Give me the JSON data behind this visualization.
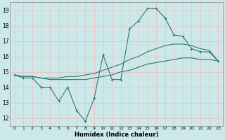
{
  "title": "",
  "xlabel": "Humidex (Indice chaleur)",
  "ylabel": "",
  "xlim": [
    -0.5,
    23.5
  ],
  "ylim": [
    11.5,
    19.5
  ],
  "yticks": [
    12,
    13,
    14,
    15,
    16,
    17,
    18,
    19
  ],
  "xticks": [
    0,
    1,
    2,
    3,
    4,
    5,
    6,
    7,
    8,
    9,
    10,
    11,
    12,
    13,
    14,
    15,
    16,
    17,
    18,
    19,
    20,
    21,
    22,
    23
  ],
  "bg_color": "#cde8e8",
  "grid_color": "#e8c8c8",
  "line_color": "#2d7a6e",
  "series1_x": [
    0,
    1,
    2,
    3,
    4,
    5,
    6,
    7,
    8,
    9,
    10,
    11,
    12,
    13,
    14,
    15,
    16,
    17,
    18,
    19,
    20,
    21,
    22,
    23
  ],
  "series1_y": [
    14.8,
    14.6,
    14.6,
    14.0,
    14.0,
    13.1,
    14.0,
    12.5,
    11.8,
    13.3,
    16.1,
    14.5,
    14.5,
    17.8,
    18.3,
    19.1,
    19.1,
    18.5,
    17.4,
    17.3,
    16.5,
    16.3,
    16.3,
    15.7
  ],
  "series2_x": [
    0,
    1,
    2,
    3,
    4,
    5,
    6,
    7,
    8,
    9,
    10,
    11,
    12,
    13,
    14,
    15,
    16,
    17,
    18,
    19,
    20,
    21,
    22,
    23
  ],
  "series2_y": [
    14.8,
    14.7,
    14.7,
    14.6,
    14.6,
    14.6,
    14.7,
    14.7,
    14.8,
    14.9,
    15.1,
    15.3,
    15.5,
    15.8,
    16.0,
    16.3,
    16.5,
    16.7,
    16.8,
    16.8,
    16.7,
    16.5,
    16.4,
    15.7
  ],
  "series3_x": [
    0,
    1,
    2,
    3,
    4,
    5,
    6,
    7,
    8,
    9,
    10,
    11,
    12,
    13,
    14,
    15,
    16,
    17,
    18,
    19,
    20,
    21,
    22,
    23
  ],
  "series3_y": [
    14.8,
    14.7,
    14.7,
    14.6,
    14.5,
    14.5,
    14.5,
    14.5,
    14.5,
    14.6,
    14.7,
    14.8,
    15.0,
    15.1,
    15.3,
    15.5,
    15.6,
    15.7,
    15.8,
    15.9,
    15.9,
    15.8,
    15.8,
    15.7
  ]
}
